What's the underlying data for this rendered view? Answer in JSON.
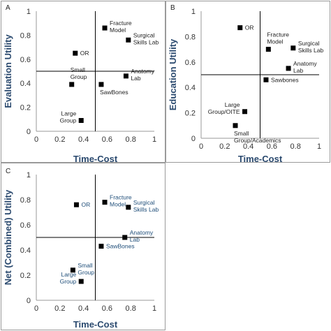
{
  "chart_data": [
    {
      "type": "scatter",
      "panel_label": "A",
      "xlabel": "Time-Cost",
      "ylabel": "Evaluation Utility",
      "xlim": [
        0,
        1
      ],
      "ylim": [
        0,
        1
      ],
      "xticks": [
        "0",
        "0.2",
        "0.4",
        "0.6",
        "0.8",
        "1"
      ],
      "yticks": [
        "0",
        "0.2",
        "0.4",
        "0.6",
        "0.8",
        "1"
      ],
      "reference_lines": {
        "x": 0.5,
        "y": 0.5
      },
      "label_color": "#222222",
      "points": [
        {
          "label": "Fracture\nModel",
          "x": 0.58,
          "y": 0.86,
          "label_pos": "right"
        },
        {
          "label": "Surgical\nSkills Lab",
          "x": 0.78,
          "y": 0.76,
          "label_pos": "right"
        },
        {
          "label": "OR",
          "x": 0.33,
          "y": 0.65,
          "label_pos": "right"
        },
        {
          "label": "Anatomy\nLab",
          "x": 0.76,
          "y": 0.46,
          "label_pos": "right"
        },
        {
          "label": "Small\nGroup",
          "x": 0.3,
          "y": 0.39,
          "label_pos": "above"
        },
        {
          "label": "SawBones",
          "x": 0.55,
          "y": 0.39,
          "label_pos": "below"
        },
        {
          "label": "Large\nGroup",
          "x": 0.38,
          "y": 0.09,
          "label_pos": "left"
        }
      ]
    },
    {
      "type": "scatter",
      "panel_label": "B",
      "xlabel": "Time-Cost",
      "ylabel": "Education Utility",
      "xlim": [
        0,
        1
      ],
      "ylim": [
        0,
        1
      ],
      "xticks": [
        "0",
        "0.2",
        "0.4",
        "0.6",
        "0.8",
        "1"
      ],
      "yticks": [
        "0",
        "0.2",
        "0.4",
        "0.6",
        "0.8",
        "1"
      ],
      "reference_lines": {
        "x": 0.5,
        "y": 0.5
      },
      "label_color": "#222222",
      "points": [
        {
          "label": "OR",
          "x": 0.33,
          "y": 0.87,
          "label_pos": "right"
        },
        {
          "label": "Fracture\nModel",
          "x": 0.57,
          "y": 0.7,
          "label_pos": "above"
        },
        {
          "label": "Surgical\nSkills Lab",
          "x": 0.78,
          "y": 0.71,
          "label_pos": "right"
        },
        {
          "label": "Anatomy\nLab",
          "x": 0.74,
          "y": 0.55,
          "label_pos": "right"
        },
        {
          "label": "Sawbones",
          "x": 0.55,
          "y": 0.46,
          "label_pos": "right"
        },
        {
          "label": "Large\nGroup/OITE",
          "x": 0.37,
          "y": 0.21,
          "label_pos": "left"
        },
        {
          "label": "Small\nGroup/Academics",
          "x": 0.29,
          "y": 0.1,
          "label_pos": "below"
        }
      ]
    },
    {
      "type": "scatter",
      "panel_label": "C",
      "xlabel": "Time-Cost",
      "ylabel": "Net (Combined) Utility",
      "xlim": [
        0,
        1
      ],
      "ylim": [
        0,
        1
      ],
      "xticks": [
        "0",
        "0.2",
        "0.4",
        "0.6",
        "0.8",
        "1"
      ],
      "yticks": [
        "0",
        "0.2",
        "0.4",
        "0.6",
        "0.8",
        "1"
      ],
      "reference_lines": {
        "x": 0.5,
        "y": 0.5
      },
      "label_color": "#1f4e79",
      "points": [
        {
          "label": "OR",
          "x": 0.34,
          "y": 0.76,
          "label_pos": "right"
        },
        {
          "label": "Fracture\nModel",
          "x": 0.58,
          "y": 0.78,
          "label_pos": "right"
        },
        {
          "label": "Surgical\nSkills Lab",
          "x": 0.78,
          "y": 0.74,
          "label_pos": "right"
        },
        {
          "label": "Anatomy\nLab",
          "x": 0.75,
          "y": 0.5,
          "label_pos": "right"
        },
        {
          "label": "SawBones",
          "x": 0.55,
          "y": 0.43,
          "label_pos": "right"
        },
        {
          "label": "Small\nGroup",
          "x": 0.31,
          "y": 0.24,
          "label_pos": "right"
        },
        {
          "label": "Large\nGroup",
          "x": 0.38,
          "y": 0.15,
          "label_pos": "left"
        }
      ]
    }
  ]
}
